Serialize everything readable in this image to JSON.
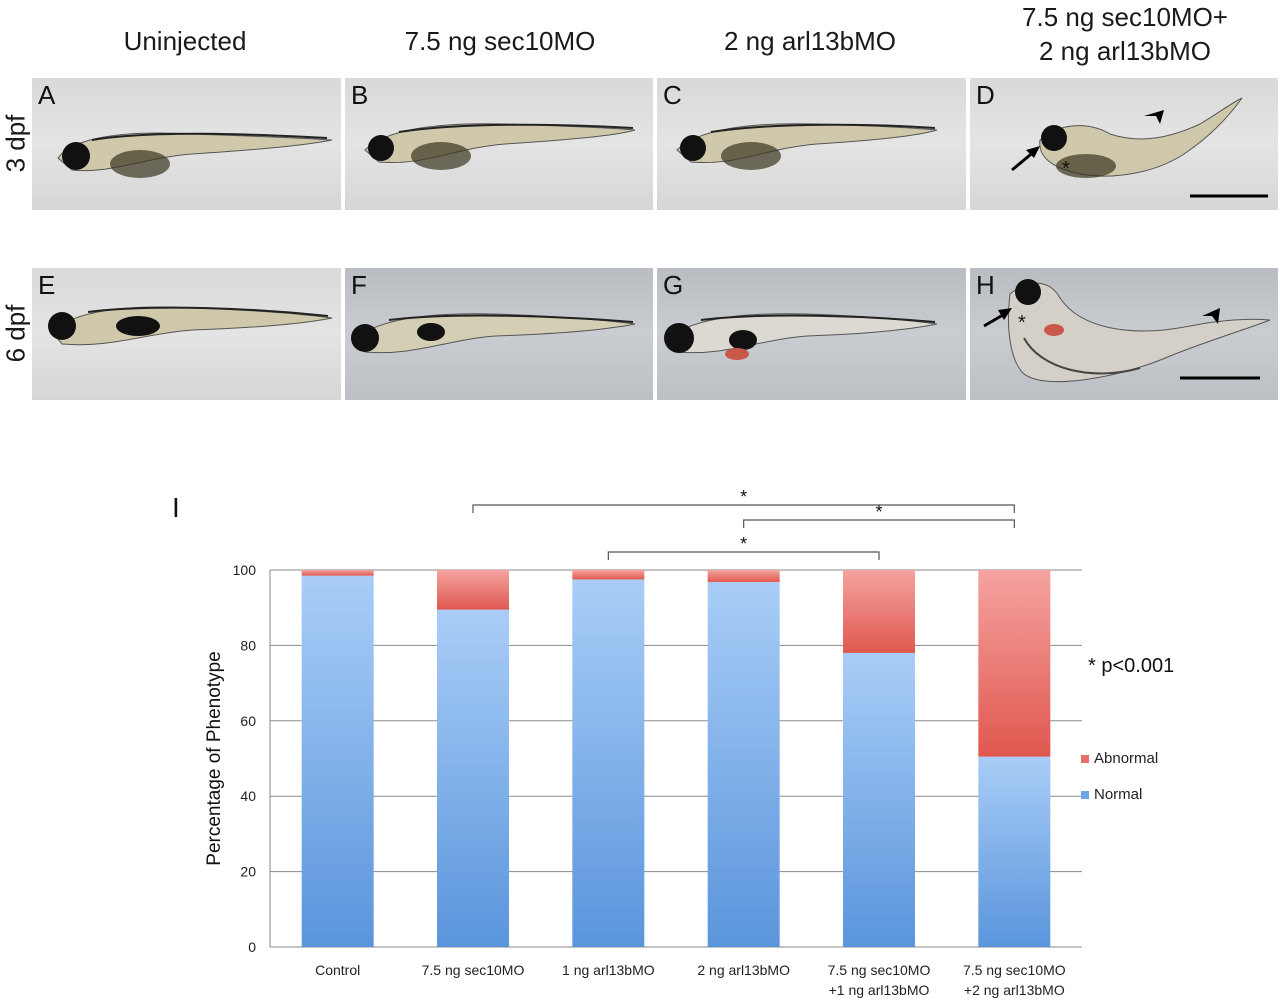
{
  "figure": {
    "column_headers": [
      {
        "lines": [
          "Uninjected"
        ]
      },
      {
        "lines": [
          "7.5 ng sec10MO"
        ]
      },
      {
        "lines": [
          "2 ng arl13bMO"
        ]
      },
      {
        "lines": [
          "7.5 ng sec10MO+",
          "2 ng arl13bMO"
        ]
      }
    ],
    "row_labels": [
      "3 dpf",
      "6 dpf"
    ],
    "panels_row1": [
      "A",
      "B",
      "C",
      "D"
    ],
    "panels_row2": [
      "E",
      "F",
      "G",
      "H"
    ],
    "panel_i_letter": "I",
    "markers": {
      "arrow": "arrow-icon",
      "arrowhead": "arrowhead-icon",
      "asterisk": "*"
    }
  },
  "chart_data": {
    "type": "bar",
    "stacked": true,
    "categories": [
      [
        "Control"
      ],
      [
        "7.5 ng sec10MO"
      ],
      [
        "1 ng arl13bMO"
      ],
      [
        "2 ng arl13bMO"
      ],
      [
        "7.5 ng sec10MO",
        "+1 ng arl13bMO"
      ],
      [
        "7.5 ng sec10MO",
        "+2 ng arl13bMO"
      ]
    ],
    "series": [
      {
        "name": "Normal",
        "color": "#6fa6e8",
        "values": [
          98.5,
          89.5,
          97.5,
          96.8,
          78,
          50.5
        ]
      },
      {
        "name": "Abnormal",
        "color": "#e8706a",
        "values": [
          1.5,
          10.5,
          2.5,
          3.2,
          22,
          49.5
        ]
      }
    ],
    "ylabel": "Percentage of Phenotype",
    "xlabel": "",
    "ylim": [
      0,
      100
    ],
    "yticks": [
      0,
      20,
      40,
      60,
      80,
      100
    ],
    "grid": true,
    "legend_position": "right",
    "legend_order": [
      "Abnormal",
      "Normal"
    ],
    "significance": [
      {
        "from": 1,
        "to": 5,
        "label": "*"
      },
      {
        "from": 3,
        "to": 5,
        "label": "*"
      },
      {
        "from": 2,
        "to": 4,
        "label": "*"
      }
    ],
    "annotation": "* p<0.001"
  }
}
